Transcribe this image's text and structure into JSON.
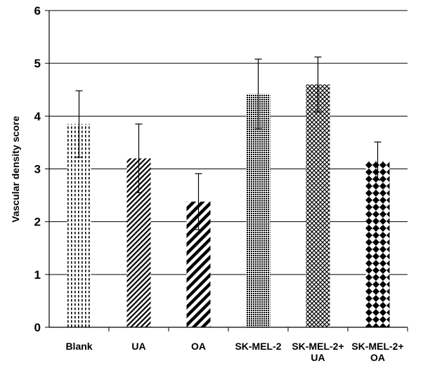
{
  "chart_data": {
    "type": "bar",
    "title": "",
    "xlabel": "",
    "ylabel": "Vascular density score",
    "ylim": [
      0,
      6
    ],
    "yticks": [
      0,
      1,
      2,
      3,
      4,
      5,
      6
    ],
    "grid": true,
    "categories": [
      [
        "Blank"
      ],
      [
        "UA"
      ],
      [
        "OA"
      ],
      [
        "SK-MEL-2"
      ],
      [
        "SK-MEL-2+",
        "UA"
      ],
      [
        "SK-MEL-2+",
        "OA"
      ]
    ],
    "values": [
      3.85,
      3.2,
      2.38,
      4.42,
      4.6,
      3.15
    ],
    "errors": [
      0.63,
      0.65,
      0.53,
      0.66,
      0.52,
      0.36
    ],
    "patterns": [
      "dashed-vertical",
      "diagonal-fine",
      "diagonal-bold",
      "dense-dots",
      "crosshatch",
      "diamond-checker"
    ]
  }
}
